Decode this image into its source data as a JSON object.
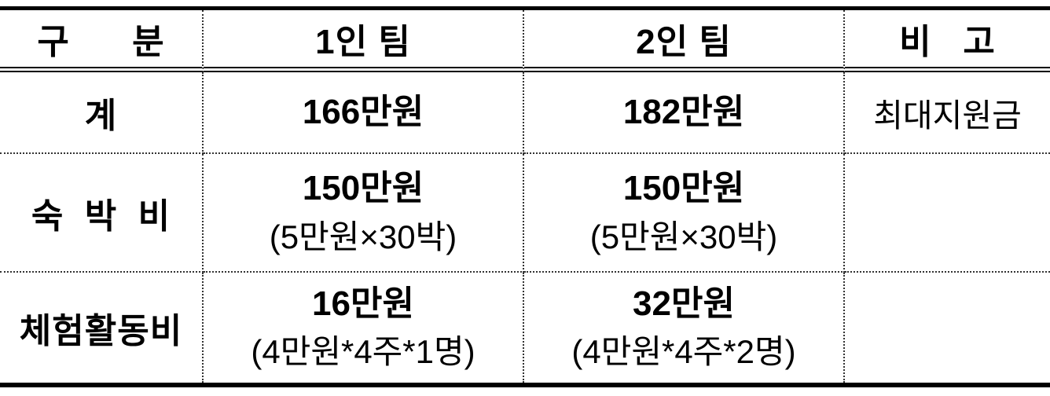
{
  "table": {
    "header": {
      "col0": "구      분",
      "col1": "1인 팀",
      "col2": "2인 팀",
      "col3": "비   고"
    },
    "rows": [
      {
        "label": "계",
        "team1": {
          "main": "166만원",
          "sub": ""
        },
        "team2": {
          "main": "182만원",
          "sub": ""
        },
        "note": "최대지원금"
      },
      {
        "label": "숙  박  비",
        "team1": {
          "main": "150만원",
          "sub": "(5만원×30박)"
        },
        "team2": {
          "main": "150만원",
          "sub": "(5만원×30박)"
        },
        "note": ""
      },
      {
        "label": "체험활동비",
        "team1": {
          "main": "16만원",
          "sub": "(4만원*4주*1명)"
        },
        "team2": {
          "main": "32만원",
          "sub": "(4만원*4주*2명)"
        },
        "note": ""
      }
    ]
  },
  "colors": {
    "border": "#000000",
    "divider": "#333333",
    "text": "#000000",
    "background": "#ffffff"
  }
}
